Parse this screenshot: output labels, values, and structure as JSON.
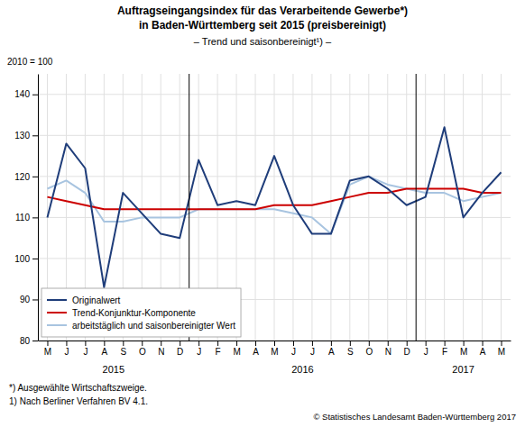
{
  "chart_data": {
    "type": "line",
    "title": [
      "Auftragseingangsindex für das Verarbeitende Gewerbe*)",
      "in Baden-Württemberg seit 2015 (preisbereinigt)"
    ],
    "subtitle": "– Trend und saisonbereinigt¹) –",
    "y_label": "2010 = 100",
    "categories": [
      "M",
      "J",
      "J",
      "A",
      "S",
      "O",
      "N",
      "D",
      "J",
      "F",
      "M",
      "A",
      "M",
      "J",
      "J",
      "A",
      "S",
      "O",
      "N",
      "D",
      "J",
      "F",
      "M",
      "A",
      "M"
    ],
    "category_groups": [
      {
        "label": "2015",
        "start": 0,
        "end": 7
      },
      {
        "label": "2016",
        "start": 8,
        "end": 19
      },
      {
        "label": "2017",
        "start": 20,
        "end": 24
      }
    ],
    "series": [
      {
        "name": "Originalwert",
        "color": "#1f3d7a",
        "values": [
          110,
          128,
          122,
          93,
          116,
          111,
          106,
          105,
          124,
          113,
          114,
          113,
          125,
          113,
          106,
          106,
          119,
          120,
          117,
          113,
          115,
          132,
          110,
          116,
          121
        ]
      },
      {
        "name": "Trend-Konjunktur-Komponente",
        "color": "#cc0000",
        "values": [
          115,
          114,
          113,
          112,
          112,
          112,
          112,
          112,
          112,
          112,
          112,
          112,
          113,
          113,
          113,
          114,
          115,
          116,
          116,
          117,
          117,
          117,
          117,
          116,
          116
        ]
      },
      {
        "name": "arbeitstäglich und saisonbereinigter Wert",
        "color": "#a8c4e0",
        "values": [
          117,
          119,
          116,
          109,
          109,
          110,
          110,
          110,
          112,
          112,
          112,
          112,
          112,
          111,
          110,
          106,
          118,
          120,
          118,
          117,
          116,
          116,
          114,
          115,
          116
        ]
      }
    ],
    "ylim": [
      80,
      145
    ],
    "yticks": [
      80,
      90,
      100,
      110,
      120,
      130,
      140
    ],
    "grid": true,
    "legend": "lower left",
    "footnotes": [
      "*) Ausgewählte Wirtschaftszweige.",
      "1) Nach Berliner Verfahren BV 4.1."
    ],
    "credit": "© Statistisches Landesamt Baden-Württemberg 2017"
  }
}
